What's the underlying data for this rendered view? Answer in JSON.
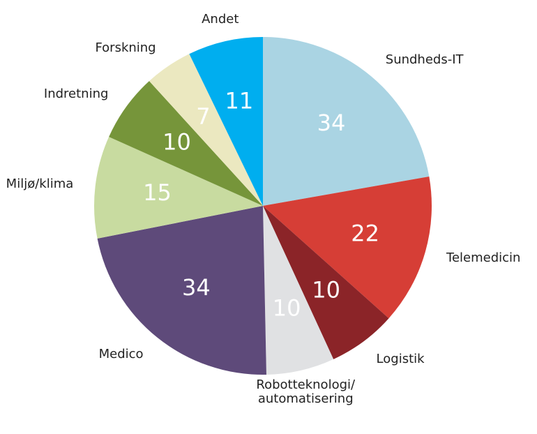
{
  "chart_data": {
    "type": "pie",
    "categories": [
      "Sundheds-IT",
      "Telemedicin",
      "Logistik",
      "Robotteknologi/\nautomatisering",
      "Medico",
      "Miljø/klima",
      "Indretning",
      "Forskning",
      "Andet"
    ],
    "values": [
      34,
      22,
      10,
      10,
      34,
      15,
      10,
      7,
      11
    ],
    "colors": [
      "#aad4e3",
      "#d63e36",
      "#8b2428",
      "#e0e1e3",
      "#5e4a7a",
      "#c8dba0",
      "#76953a",
      "#ebe8c0",
      "#00aeef"
    ]
  }
}
